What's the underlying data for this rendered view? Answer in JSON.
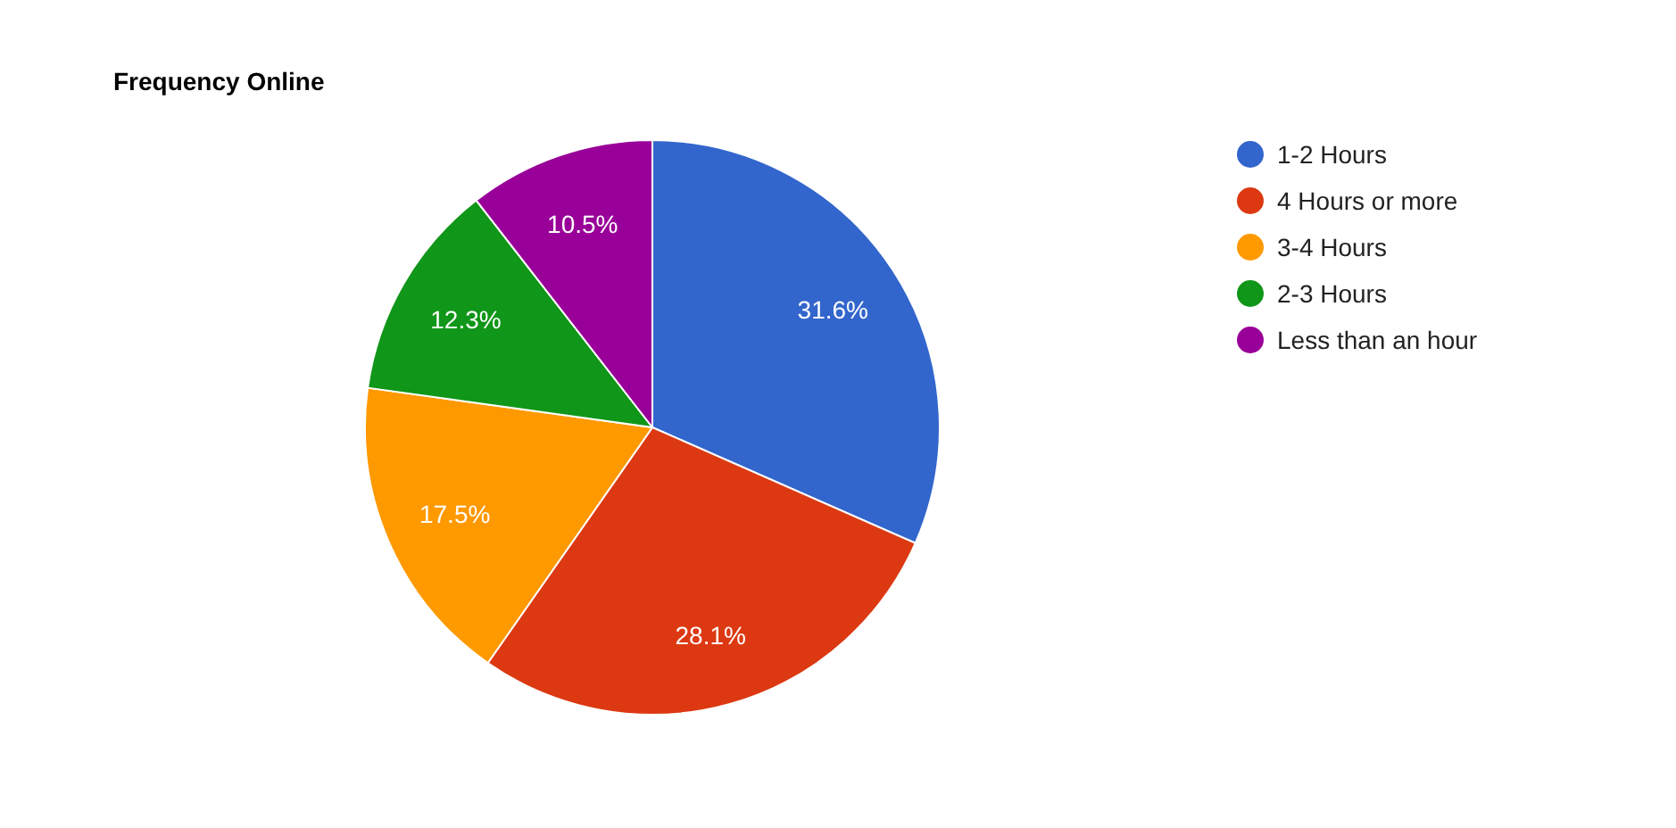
{
  "chart_data": {
    "type": "pie",
    "title": "Frequency Online",
    "categories": [
      "1-2 Hours",
      "4 Hours or more",
      "3-4 Hours",
      "2-3 Hours",
      "Less than an hour"
    ],
    "values": [
      31.6,
      28.1,
      17.5,
      12.3,
      10.5
    ],
    "colors": [
      "#3366cc",
      "#dc3912",
      "#ff9900",
      "#109618",
      "#990099"
    ],
    "value_labels": [
      "31.6%",
      "28.1%",
      "17.5%",
      "12.3%",
      "10.5%"
    ],
    "legend": "right"
  }
}
